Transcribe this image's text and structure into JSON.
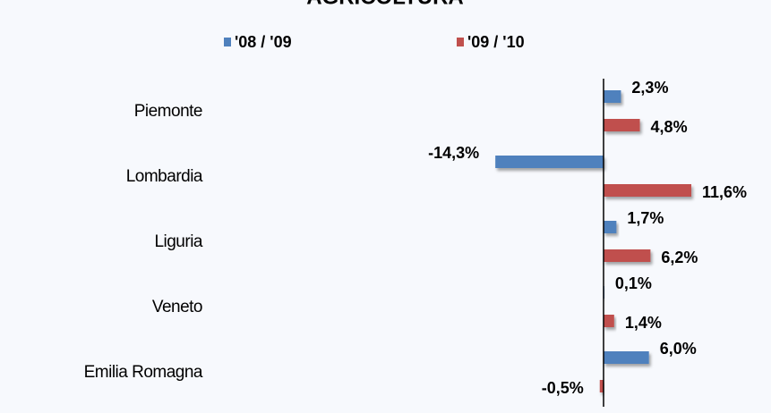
{
  "chart_data": {
    "type": "bar",
    "orientation": "horizontal",
    "title": "AGRICOLTURA",
    "categories": [
      "Piemonte",
      "Lombardia",
      "Liguria",
      "Veneto",
      "Emilia Romagna"
    ],
    "series": [
      {
        "name": "'08 / '09",
        "color": "#4f81bd",
        "values": [
          2.3,
          -14.3,
          1.7,
          0.1,
          6.0
        ],
        "value_labels": [
          "2,3%",
          "-14,3%",
          "1,7%",
          "0,1%",
          "6,0%"
        ]
      },
      {
        "name": "'09 / '10",
        "color": "#c0504d",
        "values": [
          4.8,
          11.6,
          6.2,
          1.4,
          -0.5
        ],
        "value_labels": [
          "4,8%",
          "11,6%",
          "6,2%",
          "1,4%",
          "-0,5%"
        ]
      }
    ],
    "legend": "top"
  }
}
